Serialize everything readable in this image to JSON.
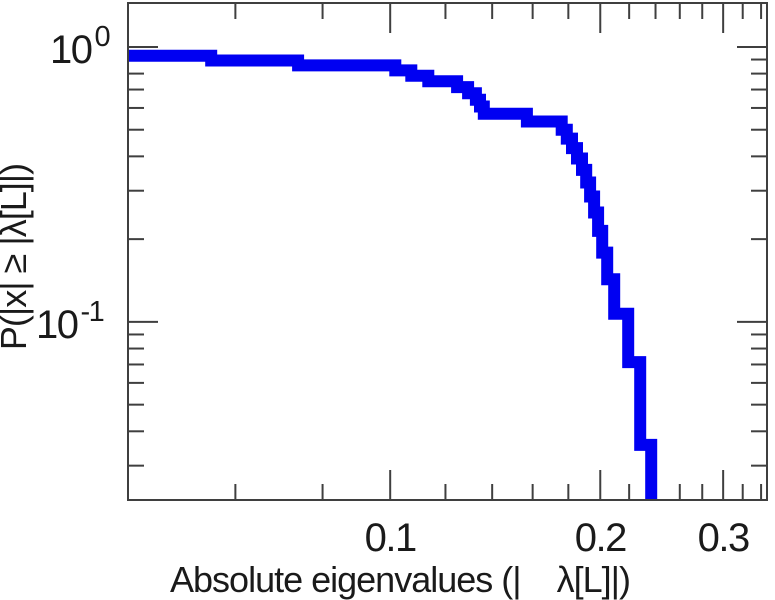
{
  "figure": {
    "background": "#ffffff",
    "curve_color": "#0000f2",
    "axis_color": "#3f3f3f",
    "text_color": "#1a1a1a"
  },
  "axes": {
    "x": {
      "title": "Absolute eigenvalues (|    λ[L]|)",
      "scale": "log",
      "range": [
        0.0421,
        0.3467
      ],
      "major_ticks": [
        0.1,
        0.2,
        0.3
      ],
      "major_tick_labels": [
        "0.1",
        "0.2",
        "0.3"
      ],
      "minor_ticks": [
        0.06,
        0.08,
        0.12,
        0.14,
        0.16,
        0.18,
        0.22,
        0.24,
        0.26,
        0.28,
        0.32,
        0.34
      ]
    },
    "y": {
      "title": "P(|x| ≥ |λ[L]|)",
      "scale": "log",
      "range": [
        0.0225,
        1.445
      ],
      "major_ticks": [
        1,
        0.1
      ],
      "major_tick_labels": [
        {
          "value": 1,
          "base": "10",
          "exp": "0"
        },
        {
          "value": 0.1,
          "base": "10",
          "exp": "-1"
        }
      ],
      "minor_ticks": [
        0.9,
        0.8,
        0.7,
        0.6,
        0.5,
        0.4,
        0.3,
        0.2,
        0.09,
        0.08,
        0.07,
        0.06,
        0.05,
        0.04,
        0.03
      ]
    }
  },
  "chart_data": {
    "type": "line",
    "subtype": "empirical-ccdf-step",
    "title": "",
    "xlabel": "Absolute eigenvalues (|    λ[L]|)",
    "ylabel": "P(|x| ≥ |λ[L]|)",
    "x_axis_scale": "log",
    "y_axis_scale": "log",
    "xlim": [
      0.0421,
      0.3467
    ],
    "ylim": [
      0.0225,
      1.445
    ],
    "grid": false,
    "legend": null,
    "n_eigenvalues_total": 28,
    "start_probability": 0.9286,
    "steps_v_p": [
      [
        0.0554,
        0.8929
      ],
      [
        0.0738,
        0.8571
      ],
      [
        0.1017,
        0.8214
      ],
      [
        0.1072,
        0.7857
      ],
      [
        0.1134,
        0.75
      ],
      [
        0.1247,
        0.7143
      ],
      [
        0.1293,
        0.6786
      ],
      [
        0.1327,
        0.6429
      ],
      [
        0.1345,
        0.6071
      ],
      [
        0.1362,
        0.5714
      ],
      [
        0.157,
        0.5357
      ],
      [
        0.1761,
        0.5
      ],
      [
        0.1791,
        0.4643
      ],
      [
        0.1822,
        0.4286
      ],
      [
        0.1852,
        0.3929
      ],
      [
        0.1883,
        0.3571
      ],
      [
        0.1909,
        0.3214
      ],
      [
        0.1934,
        0.2857
      ],
      [
        0.196,
        0.25
      ],
      [
        0.1986,
        0.2143
      ],
      [
        0.2013,
        0.1786
      ],
      [
        0.2046,
        0.1429
      ],
      [
        0.2094,
        0.1071
      ],
      [
        0.2193,
        0.0714
      ],
      [
        0.2282,
        0.0357
      ],
      [
        0.2366,
        0.0
      ]
    ]
  }
}
